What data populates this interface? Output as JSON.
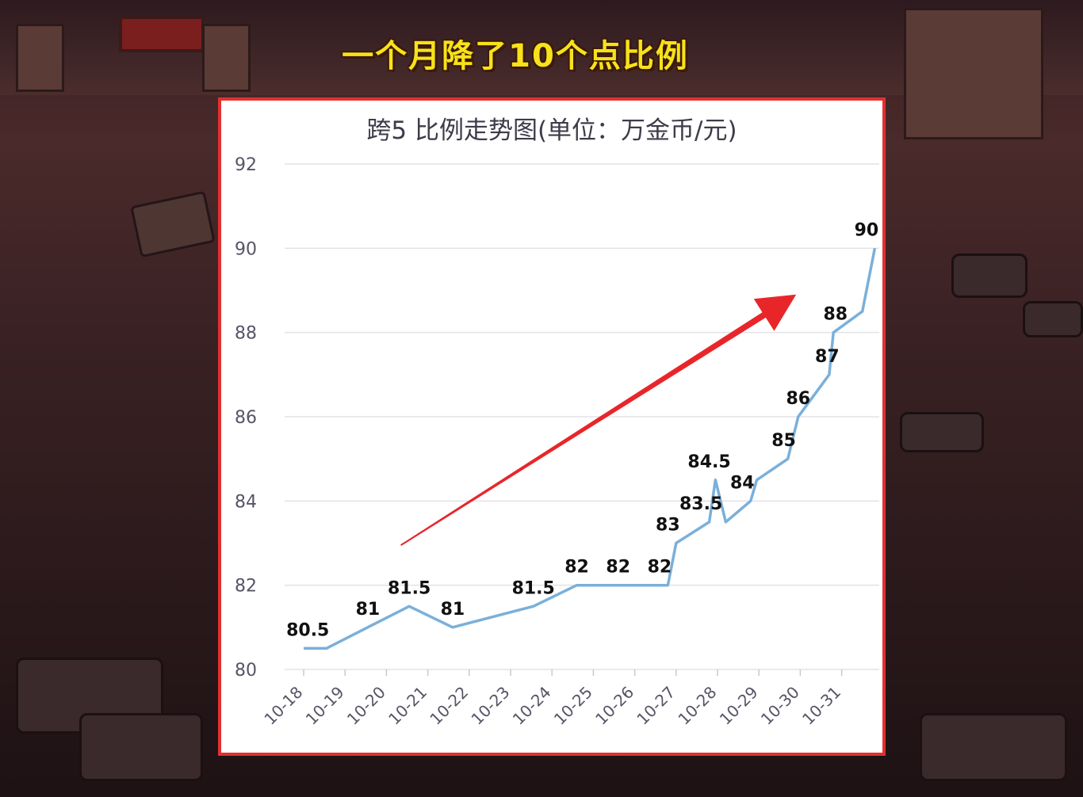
{
  "headline": "一个月降了10个点比例",
  "colors": {
    "accent_line": "#7ab0da",
    "arrow": "#e8262a",
    "frame": "#e23030",
    "headline": "#f7e21b"
  },
  "chart_data": {
    "type": "line",
    "title": "跨5 比例走势图(单位：万金币/元)",
    "xlabel": "",
    "ylabel": "",
    "ylim": [
      80,
      92
    ],
    "yticks": [
      80,
      82,
      84,
      86,
      88,
      90,
      92
    ],
    "categories": [
      "10-18",
      "10-19",
      "10-20",
      "10-21",
      "10-22",
      "10-23",
      "10-24",
      "10-25",
      "10-26",
      "10-27",
      "10-28",
      "10-29",
      "10-30",
      "10-31"
    ],
    "points": [
      {
        "x": 0.0,
        "y": 80.5
      },
      {
        "x": 0.55,
        "y": 80.5
      },
      {
        "x": 1.55,
        "y": 81
      },
      {
        "x": 2.55,
        "y": 81.5
      },
      {
        "x": 3.6,
        "y": 81
      },
      {
        "x": 5.55,
        "y": 81.5
      },
      {
        "x": 6.6,
        "y": 82
      },
      {
        "x": 7.6,
        "y": 82
      },
      {
        "x": 8.8,
        "y": 82
      },
      {
        "x": 9.0,
        "y": 83
      },
      {
        "x": 9.8,
        "y": 83.5
      },
      {
        "x": 9.95,
        "y": 84.5
      },
      {
        "x": 10.2,
        "y": 83.5
      },
      {
        "x": 10.8,
        "y": 84
      },
      {
        "x": 10.95,
        "y": 84.5
      },
      {
        "x": 11.7,
        "y": 85
      },
      {
        "x": 11.95,
        "y": 86
      },
      {
        "x": 12.7,
        "y": 87
      },
      {
        "x": 12.8,
        "y": 88
      },
      {
        "x": 13.5,
        "y": 88.5
      },
      {
        "x": 13.8,
        "y": 90
      }
    ],
    "data_labels": [
      {
        "text": "80.5",
        "x": 0.1,
        "y": 80.5
      },
      {
        "text": "81",
        "x": 1.55,
        "y": 81
      },
      {
        "text": "81.5",
        "x": 2.55,
        "y": 81.5
      },
      {
        "text": "81",
        "x": 3.6,
        "y": 81
      },
      {
        "text": "81.5",
        "x": 5.55,
        "y": 81.5
      },
      {
        "text": "82",
        "x": 6.6,
        "y": 82
      },
      {
        "text": "82",
        "x": 7.6,
        "y": 82
      },
      {
        "text": "82",
        "x": 8.6,
        "y": 82
      },
      {
        "text": "83",
        "x": 8.8,
        "y": 83
      },
      {
        "text": "83.5",
        "x": 9.6,
        "y": 83.5
      },
      {
        "text": "84.5",
        "x": 9.8,
        "y": 84.5
      },
      {
        "text": "84",
        "x": 10.6,
        "y": 84
      },
      {
        "text": "85",
        "x": 11.6,
        "y": 85
      },
      {
        "text": "86",
        "x": 11.95,
        "y": 86
      },
      {
        "text": "87",
        "x": 12.65,
        "y": 87
      },
      {
        "text": "88",
        "x": 12.85,
        "y": 88
      },
      {
        "text": "90",
        "x": 13.6,
        "y": 90
      }
    ],
    "arrow": {
      "from": [
        2.35,
        82.95
      ],
      "to": [
        11.9,
        88.9
      ]
    },
    "grid": true,
    "legend": "none"
  }
}
